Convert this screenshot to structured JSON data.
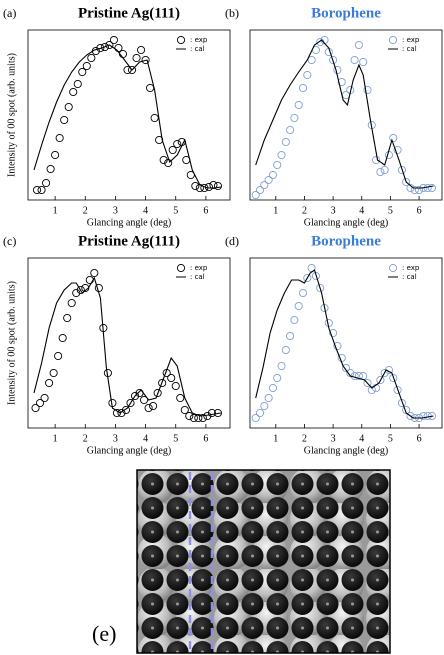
{
  "chart_data": [
    {
      "type": "scatter",
      "label": "(a)",
      "title": "Pristine Ag(111)",
      "title_color": "#000000",
      "xlabel": "Glancing angle (deg)",
      "ylabel": "Intensity of 00 spot (arb. units)",
      "xlim": [
        0.1,
        6.8
      ],
      "xticks": [
        1,
        2,
        3,
        4,
        5,
        6
      ],
      "ylim": [
        0,
        170
      ],
      "series": [
        {
          "name": ": exp",
          "mode": "markers",
          "color": "#000000",
          "x": [
            0.4,
            0.55,
            0.7,
            0.85,
            1.0,
            1.15,
            1.3,
            1.45,
            1.6,
            1.75,
            1.9,
            2.05,
            2.2,
            2.35,
            2.5,
            2.65,
            2.8,
            2.95,
            3.1,
            3.25,
            3.4,
            3.55,
            3.7,
            3.85,
            4.0,
            4.15,
            4.3,
            4.45,
            4.6,
            4.75,
            4.9,
            5.05,
            5.2,
            5.35,
            5.5,
            5.65,
            5.8,
            5.95,
            6.1,
            6.25,
            6.4
          ],
          "values": [
            10,
            10,
            17,
            31,
            45,
            62,
            80,
            93,
            108,
            116,
            128,
            134,
            142,
            149,
            152,
            153,
            155,
            160,
            152,
            146,
            130,
            130,
            142,
            150,
            140,
            112,
            82,
            60,
            40,
            37,
            50,
            56,
            58,
            40,
            25,
            14,
            12,
            12,
            13,
            15,
            14
          ]
        },
        {
          "name": ": cal",
          "mode": "lines",
          "color": "#000000",
          "x": [
            0.3,
            0.55,
            0.8,
            1.05,
            1.3,
            1.55,
            1.8,
            2.05,
            2.3,
            2.55,
            2.8,
            3.05,
            3.3,
            3.55,
            3.8,
            4.05,
            4.3,
            4.55,
            4.8,
            5.05,
            5.3,
            5.55,
            5.8,
            6.05,
            6.3,
            6.5
          ],
          "values": [
            30,
            55,
            78,
            98,
            115,
            128,
            138,
            145,
            150,
            152,
            155,
            150,
            140,
            130,
            138,
            140,
            110,
            60,
            38,
            45,
            60,
            30,
            15,
            12,
            12,
            13
          ]
        }
      ]
    },
    {
      "type": "scatter",
      "label": "(b)",
      "title": "Borophene",
      "title_color": "#3a7bd5",
      "xlabel": "Glancing angle (deg)",
      "xlim": [
        0.1,
        6.8
      ],
      "xticks": [
        1,
        2,
        3,
        4,
        5,
        6
      ],
      "ylim": [
        0,
        170
      ],
      "series": [
        {
          "name": ": exp",
          "mode": "markers",
          "color": "#7f9fd6",
          "x": [
            0.3,
            0.45,
            0.6,
            0.75,
            0.9,
            1.05,
            1.2,
            1.35,
            1.5,
            1.65,
            1.8,
            1.95,
            2.1,
            2.25,
            2.4,
            2.55,
            2.7,
            2.85,
            3.0,
            3.15,
            3.3,
            3.45,
            3.6,
            3.75,
            3.9,
            4.05,
            4.2,
            4.35,
            4.5,
            4.65,
            4.8,
            4.95,
            5.1,
            5.25,
            5.4,
            5.55,
            5.7,
            5.85,
            6.0,
            6.15,
            6.3,
            6.45
          ],
          "values": [
            5,
            10,
            15,
            20,
            25,
            35,
            45,
            58,
            70,
            82,
            95,
            112,
            125,
            140,
            150,
            158,
            160,
            148,
            140,
            130,
            118,
            105,
            110,
            140,
            155,
            138,
            110,
            75,
            40,
            28,
            30,
            45,
            62,
            50,
            30,
            18,
            12,
            10,
            10,
            12,
            12,
            12
          ]
        },
        {
          "name": ": cal",
          "mode": "lines",
          "color": "#000000",
          "x": [
            0.3,
            0.6,
            0.9,
            1.2,
            1.5,
            1.8,
            2.1,
            2.35,
            2.6,
            2.85,
            3.1,
            3.35,
            3.5,
            3.7,
            3.9,
            4.05,
            4.3,
            4.55,
            4.8,
            5.05,
            5.3,
            5.55,
            5.8,
            6.1,
            6.5
          ],
          "values": [
            35,
            60,
            80,
            100,
            115,
            128,
            140,
            155,
            160,
            152,
            130,
            100,
            95,
            120,
            135,
            125,
            80,
            40,
            35,
            60,
            40,
            18,
            12,
            12,
            14
          ]
        }
      ]
    },
    {
      "type": "scatter",
      "label": "(c)",
      "title": "Pristine Ag(111)",
      "title_color": "#000000",
      "xlabel": "Glancing angle (deg)",
      "ylabel": "Intensity of 00 spot (arb. units)",
      "xlim": [
        0.1,
        6.8
      ],
      "xticks": [
        1,
        2,
        3,
        4,
        5,
        6
      ],
      "ylim": [
        0,
        170
      ],
      "series": [
        {
          "name": ": exp",
          "mode": "markers",
          "color": "#000000",
          "x": [
            0.35,
            0.5,
            0.65,
            0.8,
            0.95,
            1.1,
            1.25,
            1.4,
            1.55,
            1.7,
            1.85,
            2.0,
            2.15,
            2.3,
            2.45,
            2.6,
            2.75,
            2.9,
            3.05,
            3.2,
            3.35,
            3.5,
            3.65,
            3.8,
            3.95,
            4.1,
            4.25,
            4.4,
            4.55,
            4.7,
            4.85,
            5.0,
            5.15,
            5.3,
            5.45,
            5.6,
            5.75,
            5.9,
            6.05,
            6.2,
            6.4
          ],
          "values": [
            20,
            25,
            30,
            45,
            55,
            72,
            90,
            110,
            125,
            135,
            138,
            140,
            148,
            155,
            140,
            100,
            55,
            25,
            15,
            15,
            18,
            25,
            32,
            35,
            28,
            20,
            22,
            35,
            45,
            55,
            50,
            42,
            30,
            18,
            12,
            10,
            10,
            10,
            12,
            15,
            15
          ]
        },
        {
          "name": ": cal",
          "mode": "lines",
          "color": "#000000",
          "x": [
            0.3,
            0.55,
            0.8,
            1.05,
            1.3,
            1.55,
            1.7,
            1.9,
            2.1,
            2.3,
            2.5,
            2.7,
            2.9,
            3.15,
            3.4,
            3.65,
            3.85,
            4.1,
            4.35,
            4.6,
            4.85,
            5.05,
            5.3,
            5.55,
            5.8,
            6.1,
            6.5
          ],
          "values": [
            35,
            65,
            100,
            125,
            138,
            145,
            145,
            135,
            140,
            150,
            130,
            60,
            20,
            15,
            20,
            32,
            38,
            28,
            30,
            50,
            70,
            62,
            30,
            15,
            12,
            13,
            15
          ]
        }
      ]
    },
    {
      "type": "scatter",
      "label": "(d)",
      "title": "Borophene",
      "title_color": "#3a7bd5",
      "xlabel": "Glancing angle (deg)",
      "xlim": [
        0.1,
        6.8
      ],
      "xticks": [
        1,
        2,
        3,
        4,
        5,
        6
      ],
      "ylim": [
        0,
        170
      ],
      "series": [
        {
          "name": ": exp",
          "mode": "markers",
          "color": "#7f9fd6",
          "x": [
            0.3,
            0.45,
            0.6,
            0.75,
            0.9,
            1.05,
            1.2,
            1.35,
            1.5,
            1.65,
            1.8,
            1.95,
            2.1,
            2.25,
            2.4,
            2.55,
            2.7,
            2.85,
            3.0,
            3.15,
            3.3,
            3.45,
            3.6,
            3.75,
            3.9,
            4.05,
            4.2,
            4.35,
            4.5,
            4.65,
            4.8,
            4.95,
            5.1,
            5.25,
            5.4,
            5.55,
            5.7,
            5.85,
            6.0,
            6.15,
            6.3,
            6.45
          ],
          "values": [
            10,
            15,
            22,
            30,
            40,
            50,
            62,
            78,
            92,
            108,
            122,
            135,
            150,
            160,
            152,
            140,
            120,
            105,
            95,
            82,
            70,
            60,
            55,
            52,
            52,
            52,
            45,
            38,
            40,
            48,
            55,
            58,
            50,
            38,
            25,
            18,
            12,
            10,
            10,
            12,
            12,
            12
          ]
        },
        {
          "name": ": cal",
          "mode": "lines",
          "color": "#000000",
          "x": [
            0.3,
            0.55,
            0.8,
            1.05,
            1.3,
            1.55,
            1.8,
            2.0,
            2.2,
            2.35,
            2.6,
            2.85,
            3.1,
            3.35,
            3.6,
            3.85,
            4.1,
            4.35,
            4.6,
            4.85,
            5.05,
            5.3,
            5.55,
            5.8,
            6.1,
            6.5
          ],
          "values": [
            30,
            60,
            95,
            118,
            135,
            148,
            148,
            145,
            155,
            158,
            135,
            100,
            80,
            62,
            52,
            50,
            48,
            40,
            45,
            58,
            55,
            35,
            15,
            10,
            10,
            12
          ]
        }
      ]
    }
  ],
  "figure_e": {
    "label": "(e)"
  }
}
